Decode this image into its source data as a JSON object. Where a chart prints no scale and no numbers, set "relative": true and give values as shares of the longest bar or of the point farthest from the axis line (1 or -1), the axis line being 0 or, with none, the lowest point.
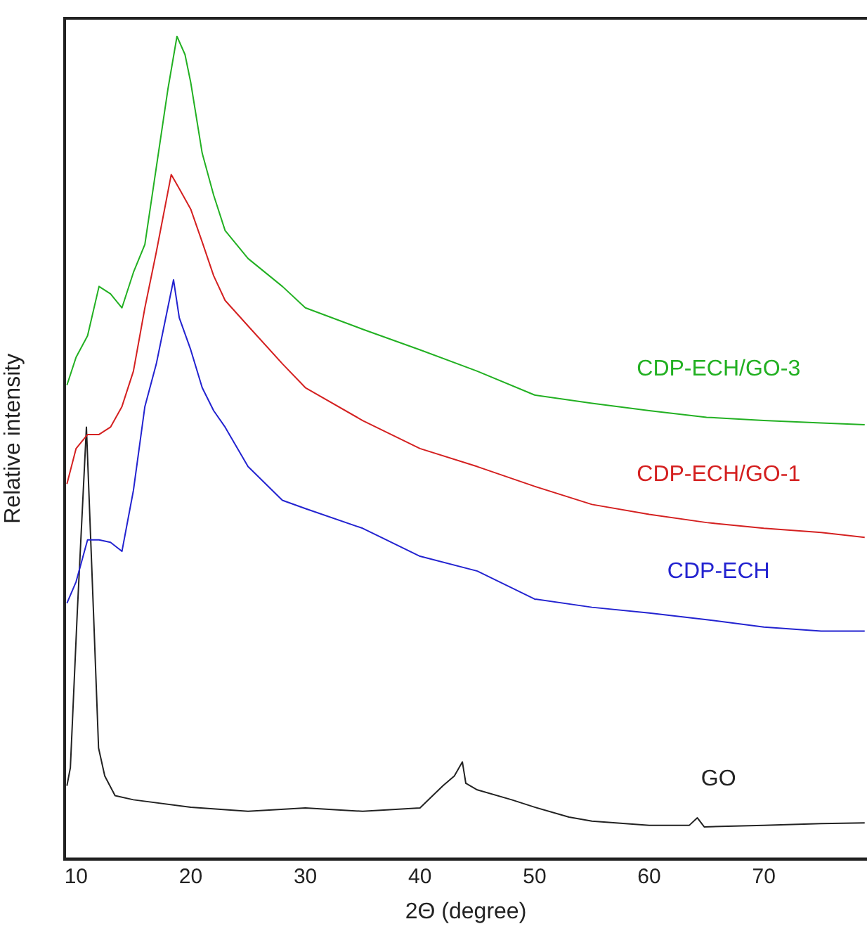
{
  "chart_data": {
    "type": "line",
    "relative": true,
    "xlabel": "2Θ (degree)",
    "ylabel": "Relative intensity",
    "xlim": [
      9,
      79
    ],
    "xticks": [
      10,
      20,
      30,
      40,
      50,
      60,
      70
    ],
    "legend": false,
    "grid": false,
    "marker": "none",
    "line_style": "solid",
    "series": [
      {
        "name": "CDP-ECH/GO-3",
        "color": "#22b022",
        "x": [
          9.2,
          10,
          11,
          12,
          13,
          14,
          15,
          16,
          17,
          18,
          18.8,
          19.5,
          20,
          21,
          22,
          23,
          25,
          28,
          30,
          35,
          40,
          45,
          50,
          55,
          60,
          65,
          70,
          75,
          78.8
        ],
        "values": [
          0.576,
          0.61,
          0.636,
          0.696,
          0.687,
          0.67,
          0.713,
          0.747,
          0.841,
          0.935,
          1,
          0.978,
          0.944,
          0.858,
          0.807,
          0.764,
          0.73,
          0.696,
          0.67,
          0.644,
          0.619,
          0.593,
          0.564,
          0.554,
          0.545,
          0.537,
          0.533,
          0.53,
          0.528
        ]
      },
      {
        "name": "CDP-ECH/GO-1",
        "color": "#d42020",
        "x": [
          9.2,
          10,
          11,
          12,
          13,
          14,
          15,
          16,
          17,
          18.3,
          19,
          20,
          21,
          22,
          23,
          25,
          28,
          30,
          35,
          40,
          45,
          50,
          55,
          60,
          65,
          70,
          75,
          78.8
        ],
        "values": [
          0.456,
          0.499,
          0.516,
          0.516,
          0.525,
          0.55,
          0.593,
          0.67,
          0.738,
          0.832,
          0.815,
          0.79,
          0.75,
          0.709,
          0.679,
          0.648,
          0.602,
          0.573,
          0.533,
          0.499,
          0.477,
          0.453,
          0.431,
          0.419,
          0.409,
          0.402,
          0.397,
          0.391
        ]
      },
      {
        "name": "CDP-ECH",
        "color": "#2323d0",
        "x": [
          9.2,
          10,
          11,
          12,
          13,
          14,
          15,
          16,
          17,
          18,
          18.5,
          19,
          20,
          21,
          22,
          23,
          25,
          28,
          30,
          35,
          40,
          45,
          50,
          55,
          60,
          65,
          70,
          75,
          78.8
        ],
        "values": [
          0.311,
          0.337,
          0.388,
          0.388,
          0.385,
          0.374,
          0.448,
          0.55,
          0.602,
          0.67,
          0.704,
          0.658,
          0.619,
          0.573,
          0.545,
          0.525,
          0.477,
          0.436,
          0.426,
          0.402,
          0.368,
          0.35,
          0.316,
          0.306,
          0.299,
          0.291,
          0.282,
          0.277,
          0.277
        ]
      },
      {
        "name": "GO",
        "color": "#222222",
        "x": [
          9.2,
          9.5,
          10.1,
          10.9,
          11.5,
          11.96,
          12.5,
          13.4,
          15,
          20,
          25,
          30,
          35,
          40,
          42,
          43,
          43.7,
          44,
          45,
          48,
          50,
          53,
          55,
          60,
          63.5,
          64.2,
          64.8,
          70,
          75,
          78.8
        ],
        "values": [
          0.089,
          0.111,
          0.299,
          0.525,
          0.306,
          0.135,
          0.101,
          0.077,
          0.072,
          0.063,
          0.058,
          0.062,
          0.058,
          0.062,
          0.089,
          0.101,
          0.118,
          0.092,
          0.084,
          0.072,
          0.063,
          0.051,
          0.046,
          0.041,
          0.041,
          0.05,
          0.039,
          0.041,
          0.043,
          0.044
        ]
      }
    ]
  }
}
